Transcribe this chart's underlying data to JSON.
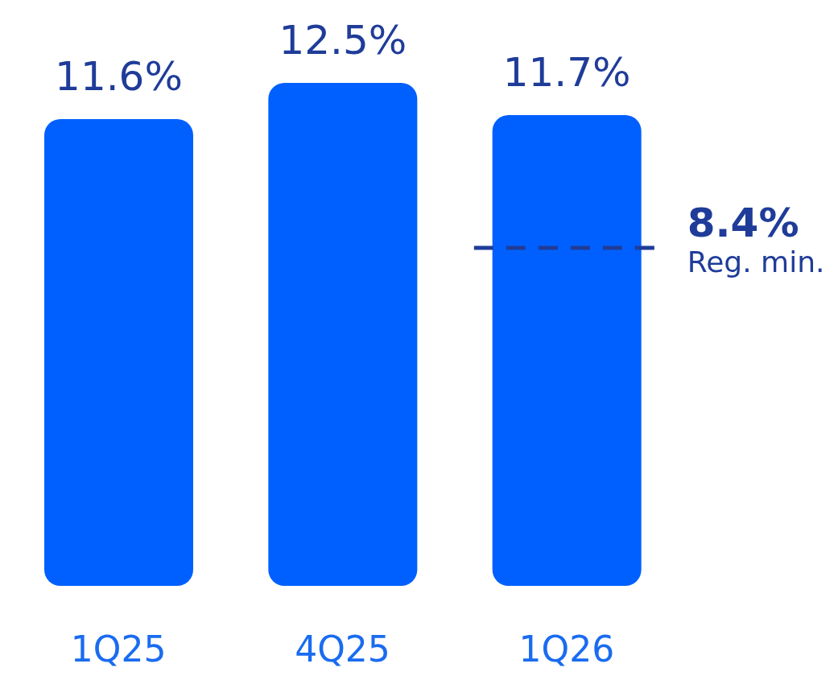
{
  "chart_data": {
    "type": "bar",
    "categories": [
      "1Q25",
      "4Q25",
      "1Q26"
    ],
    "values": [
      11.6,
      12.5,
      11.7
    ],
    "color": "#0060ff",
    "value_labels": [
      "11.6%",
      "12.5%",
      "11.7%"
    ],
    "ref_lines": [
      {
        "axis": "y",
        "value": 8.4,
        "label": "8.4%",
        "color": "#1f3c99",
        "line_style": "dashed"
      }
    ],
    "annotations": [
      "Reg. min."
    ],
    "grid": false,
    "legend": false
  }
}
